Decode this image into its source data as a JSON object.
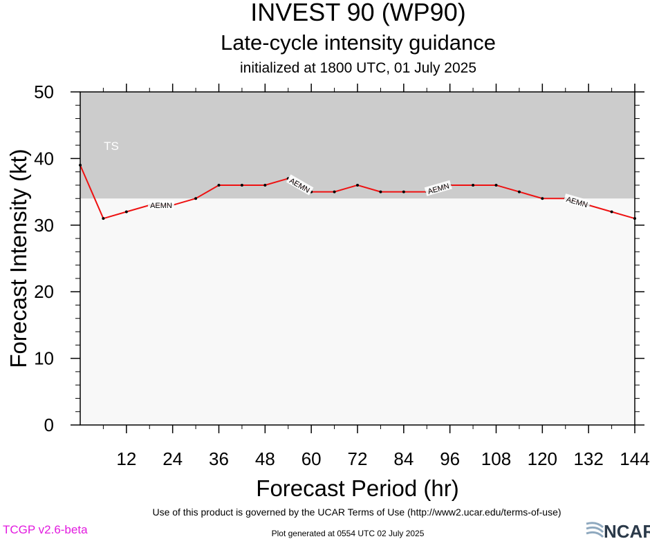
{
  "title": "INVEST 90 (WP90)",
  "subtitle": "Late-cycle intensity guidance",
  "init_text": "initialized at 1800 UTC, 01 July 2025",
  "footer": {
    "terms": "Use of this product is governed by the UCAR Terms of Use (http://www2.ucar.edu/terms-of-use)",
    "generated": "Plot generated at 0554 UTC   02 July 2025",
    "version": "TCGP v2.6-beta",
    "logo_text": "NCAR"
  },
  "colors": {
    "series": "#ee1111",
    "band": "#cccccc",
    "plot_bg": "#f8f8f8",
    "version": "#e21adf",
    "logo": "#2b3a4a"
  },
  "chart_data": {
    "type": "line",
    "xlabel": "Forecast Period (hr)",
    "ylabel": "Forecast Intensity (kt)",
    "xlim": [
      0,
      144
    ],
    "ylim": [
      0,
      50
    ],
    "xticks": [
      12,
      24,
      36,
      48,
      60,
      72,
      84,
      96,
      108,
      120,
      132,
      144
    ],
    "yticks": [
      0,
      10,
      20,
      30,
      40,
      50
    ],
    "grid": false,
    "bands": [
      {
        "label": "TS",
        "from": 34,
        "to": 50
      }
    ],
    "series": [
      {
        "name": "AEMN",
        "x": [
          0,
          6,
          12,
          18,
          24,
          30,
          36,
          42,
          48,
          54,
          60,
          66,
          72,
          78,
          84,
          90,
          96,
          102,
          108,
          114,
          120,
          126,
          132,
          138,
          144
        ],
        "y": [
          39,
          31,
          32,
          33,
          33,
          34,
          36,
          36,
          36,
          37,
          35,
          35,
          36,
          35,
          35,
          35,
          36,
          36,
          36,
          35,
          34,
          34,
          33,
          32,
          31
        ],
        "label_at": [
          21,
          57,
          93,
          129
        ]
      }
    ]
  }
}
